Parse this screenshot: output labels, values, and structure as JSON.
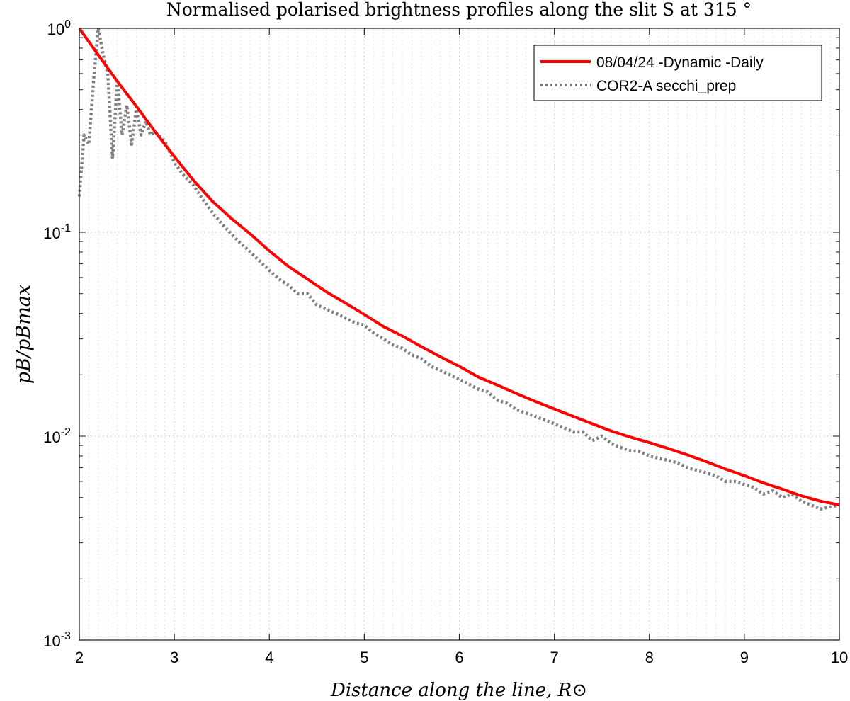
{
  "chart_data": {
    "type": "line",
    "title": "Normalised polarised brightness profiles along the slit S at 315 °",
    "xlabel": "Distance along the line, R⊙",
    "ylabel": "pB/pBmax",
    "xlim": [
      2,
      10
    ],
    "ylim": [
      0.001,
      1
    ],
    "yscale": "log",
    "grid": true,
    "legend_position": "top-right",
    "x_ticks": [
      "2",
      "3",
      "4",
      "5",
      "6",
      "7",
      "8",
      "9",
      "10"
    ],
    "y_ticks": [
      {
        "base": "10",
        "exp": "0",
        "value": 1
      },
      {
        "base": "10",
        "exp": "-1",
        "value": 0.1
      },
      {
        "base": "10",
        "exp": "-2",
        "value": 0.01
      },
      {
        "base": "10",
        "exp": "-3",
        "value": 0.001
      }
    ],
    "series": [
      {
        "name": "08/04/24 -Dynamic -Daily",
        "color": "#ff0000",
        "style": "solid",
        "x": [
          2.0,
          2.2,
          2.4,
          2.6,
          2.8,
          3.0,
          3.2,
          3.4,
          3.6,
          3.8,
          4.0,
          4.2,
          4.4,
          4.6,
          4.8,
          5.0,
          5.2,
          5.4,
          5.6,
          5.8,
          6.0,
          6.2,
          6.4,
          6.6,
          6.8,
          7.0,
          7.2,
          7.4,
          7.6,
          7.8,
          8.0,
          8.2,
          8.4,
          8.6,
          8.8,
          9.0,
          9.2,
          9.4,
          9.6,
          9.8,
          10.0
        ],
        "y": [
          1.0,
          0.74,
          0.55,
          0.415,
          0.31,
          0.235,
          0.18,
          0.142,
          0.117,
          0.098,
          0.081,
          0.068,
          0.059,
          0.051,
          0.045,
          0.0395,
          0.0345,
          0.031,
          0.0275,
          0.0245,
          0.022,
          0.0195,
          0.0178,
          0.0162,
          0.0148,
          0.0136,
          0.0125,
          0.0115,
          0.0106,
          0.0099,
          0.0093,
          0.0087,
          0.0081,
          0.0075,
          0.0069,
          0.0064,
          0.0059,
          0.0055,
          0.0051,
          0.0048,
          0.0046
        ]
      },
      {
        "name": "COR2-A secchi_prep",
        "color": "#808080",
        "style": "dotted",
        "x": [
          2.0,
          2.05,
          2.1,
          2.15,
          2.2,
          2.25,
          2.3,
          2.35,
          2.4,
          2.45,
          2.5,
          2.55,
          2.6,
          2.65,
          2.7,
          2.75,
          2.8,
          2.9,
          3.0,
          3.1,
          3.2,
          3.3,
          3.4,
          3.5,
          3.6,
          3.7,
          3.8,
          3.9,
          4.0,
          4.1,
          4.2,
          4.3,
          4.4,
          4.5,
          4.6,
          4.7,
          4.8,
          4.9,
          5.0,
          5.1,
          5.2,
          5.3,
          5.4,
          5.5,
          5.6,
          5.7,
          5.8,
          5.9,
          6.0,
          6.1,
          6.2,
          6.3,
          6.4,
          6.5,
          6.6,
          6.7,
          6.8,
          6.9,
          7.0,
          7.1,
          7.2,
          7.3,
          7.4,
          7.5,
          7.6,
          7.7,
          7.8,
          7.9,
          8.0,
          8.1,
          8.2,
          8.3,
          8.4,
          8.5,
          8.6,
          8.7,
          8.8,
          8.9,
          9.0,
          9.1,
          9.2,
          9.3,
          9.4,
          9.5,
          9.6,
          9.7,
          9.8,
          9.9,
          10.0
        ],
        "y": [
          0.15,
          0.3,
          0.27,
          0.55,
          1.0,
          0.75,
          0.6,
          0.23,
          0.55,
          0.3,
          0.42,
          0.27,
          0.4,
          0.3,
          0.35,
          0.3,
          0.31,
          0.28,
          0.22,
          0.19,
          0.17,
          0.145,
          0.125,
          0.11,
          0.098,
          0.088,
          0.08,
          0.072,
          0.065,
          0.059,
          0.055,
          0.05,
          0.05,
          0.044,
          0.042,
          0.04,
          0.038,
          0.036,
          0.035,
          0.032,
          0.03,
          0.028,
          0.027,
          0.025,
          0.024,
          0.022,
          0.021,
          0.02,
          0.019,
          0.018,
          0.017,
          0.0165,
          0.015,
          0.0145,
          0.0135,
          0.013,
          0.0125,
          0.012,
          0.0115,
          0.011,
          0.0105,
          0.0105,
          0.0095,
          0.01,
          0.0092,
          0.0088,
          0.0085,
          0.0084,
          0.008,
          0.0078,
          0.0076,
          0.0074,
          0.007,
          0.0068,
          0.0066,
          0.0064,
          0.006,
          0.006,
          0.0058,
          0.0056,
          0.0052,
          0.0054,
          0.005,
          0.0052,
          0.0048,
          0.0046,
          0.0044,
          0.0045,
          0.0046
        ]
      }
    ]
  }
}
